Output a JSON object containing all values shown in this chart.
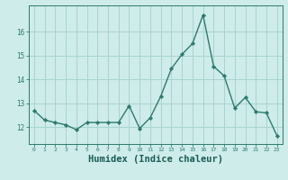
{
  "x": [
    0,
    1,
    2,
    3,
    4,
    5,
    6,
    7,
    8,
    9,
    10,
    11,
    12,
    13,
    14,
    15,
    16,
    17,
    18,
    19,
    20,
    21,
    22,
    23
  ],
  "y": [
    12.7,
    12.3,
    12.2,
    12.1,
    11.9,
    12.2,
    12.2,
    12.2,
    12.2,
    12.9,
    11.95,
    12.4,
    13.3,
    14.45,
    15.05,
    15.5,
    16.7,
    14.55,
    14.15,
    12.8,
    13.25,
    12.65,
    12.6,
    11.65
  ],
  "line_color": "#2d7a6e",
  "marker": "D",
  "marker_size": 2.2,
  "line_width": 1.0,
  "bg_color": "#ceecea",
  "grid_color": "#a8d4d0",
  "tick_color": "#2d7a6e",
  "xlabel": "Humidex (Indice chaleur)",
  "xlabel_fontsize": 7.5,
  "xlabel_color": "#1a5c55",
  "yticks": [
    12,
    13,
    14,
    15,
    16
  ],
  "xticks": [
    0,
    1,
    2,
    3,
    4,
    5,
    6,
    7,
    8,
    9,
    10,
    11,
    12,
    13,
    14,
    15,
    16,
    17,
    18,
    19,
    20,
    21,
    22,
    23
  ],
  "ylim": [
    11.3,
    17.1
  ],
  "xlim": [
    -0.5,
    23.5
  ]
}
